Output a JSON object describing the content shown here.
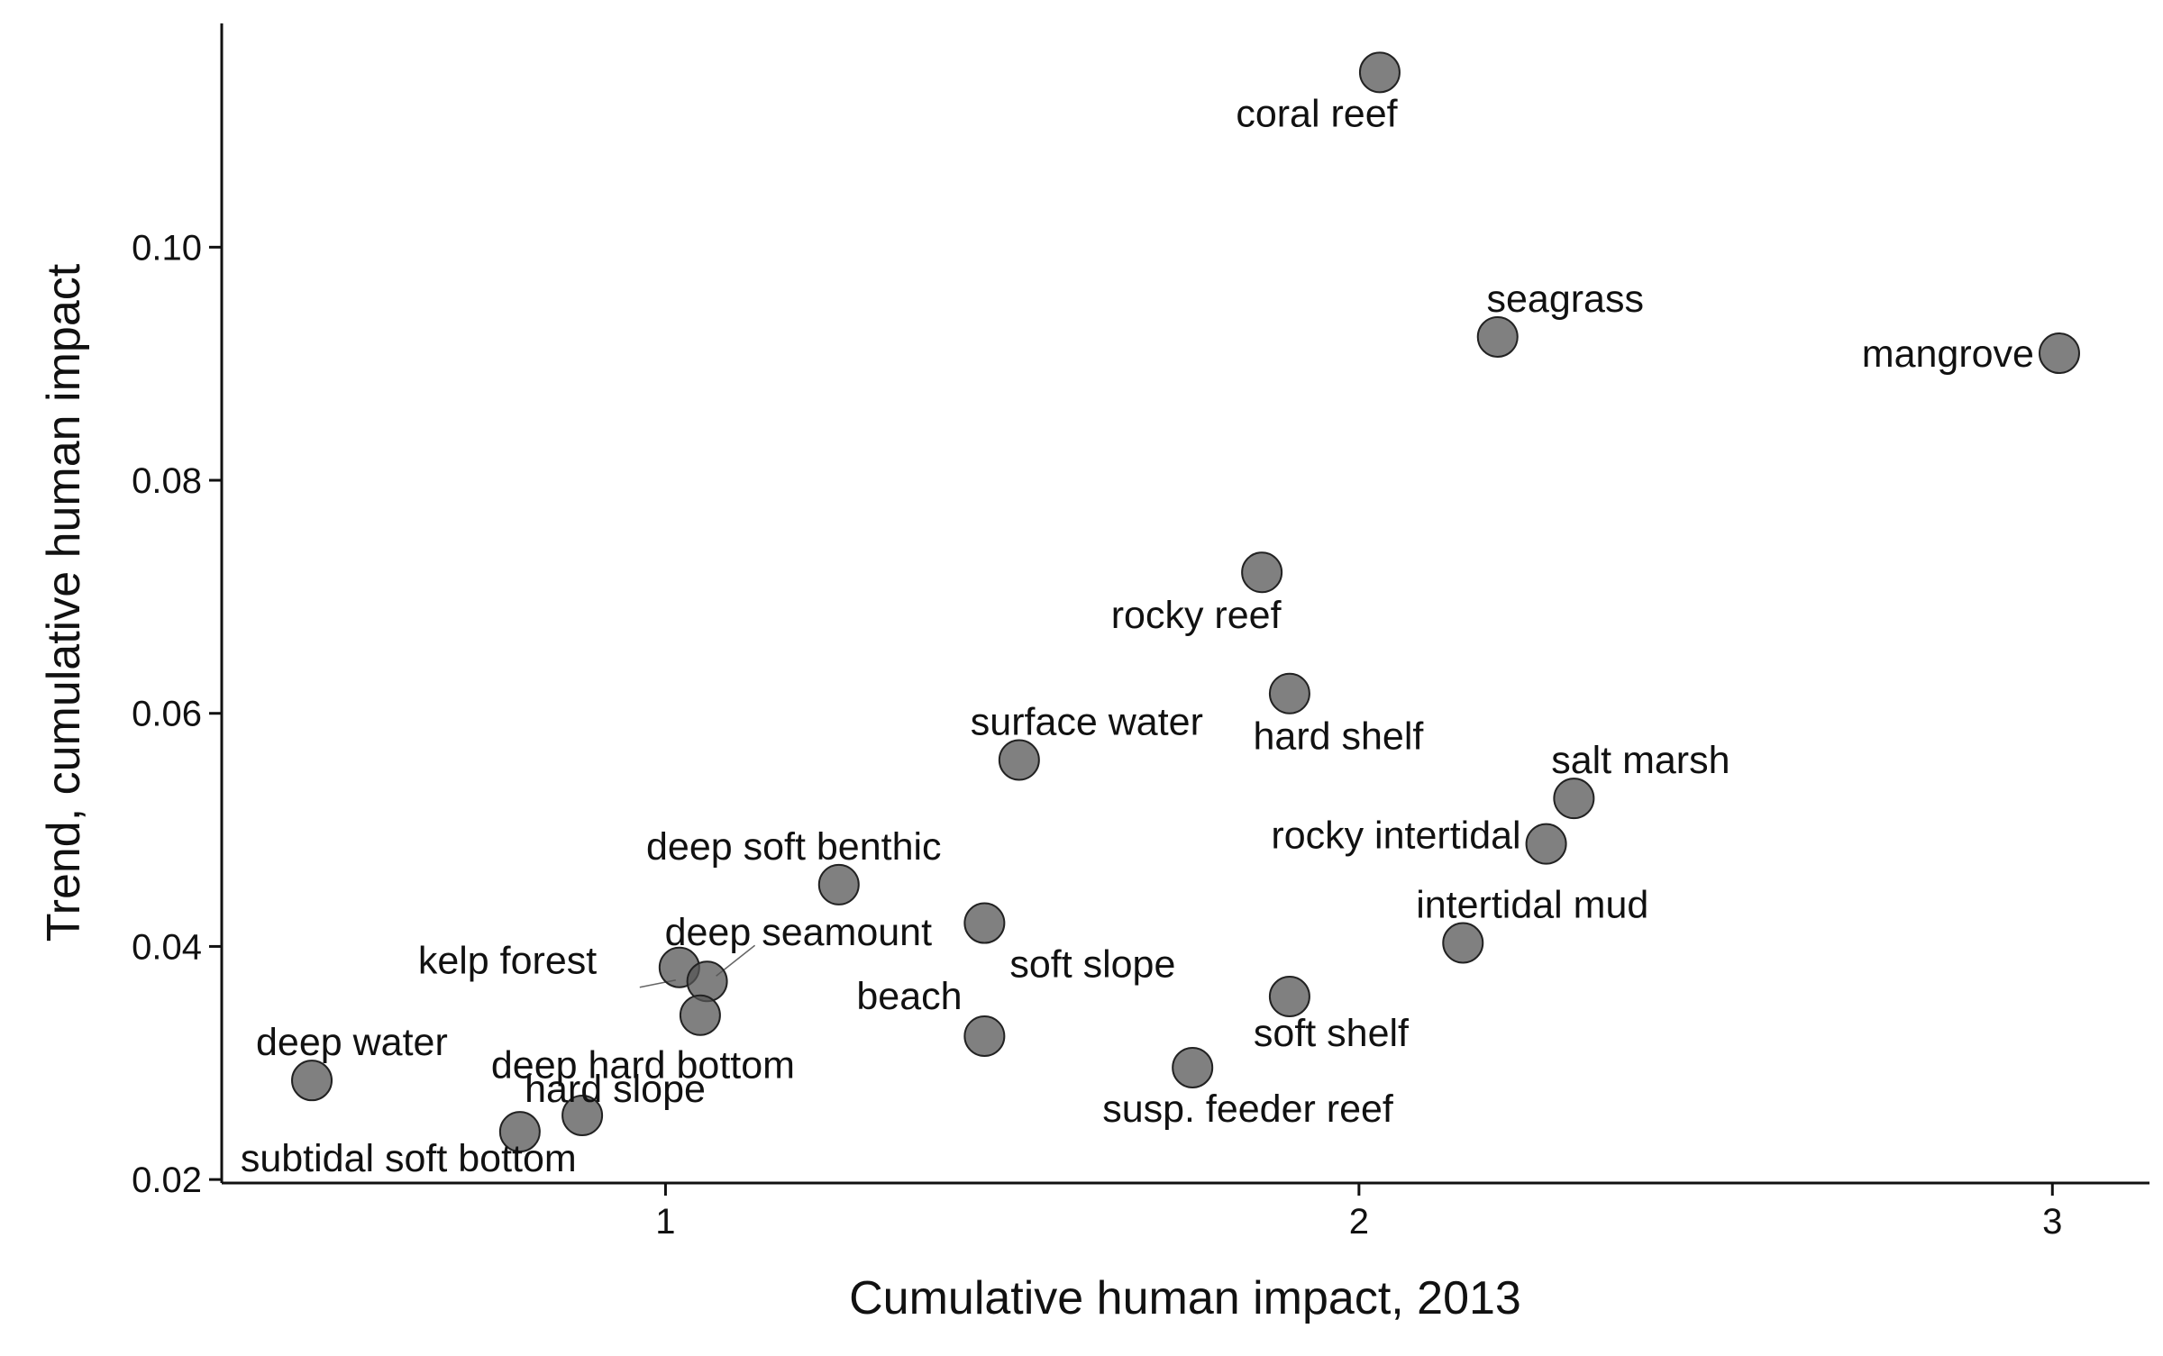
{
  "chart_data": {
    "type": "scatter",
    "title": "",
    "xlabel": "Cumulative human impact, 2013",
    "ylabel": "Trend, cumulative human impact",
    "xlim": [
      0.36,
      3.14
    ],
    "ylim": [
      0.0197,
      0.1192
    ],
    "x_ticks": [
      1,
      2,
      3
    ],
    "x_tick_labels": [
      "1",
      "2",
      "3"
    ],
    "y_ticks": [
      0.02,
      0.04,
      0.06,
      0.08,
      0.1
    ],
    "y_tick_labels": [
      "0.02",
      "0.04",
      "0.06",
      "0.08",
      "0.10"
    ],
    "grid": false,
    "point_color": "#555555",
    "points": [
      {
        "label": "coral reef",
        "x": 2.03,
        "y": 0.115
      },
      {
        "label": "seagrass",
        "x": 2.2,
        "y": 0.0923
      },
      {
        "label": "mangrove",
        "x": 3.01,
        "y": 0.0909
      },
      {
        "label": "rocky reef",
        "x": 1.86,
        "y": 0.0721
      },
      {
        "label": "hard shelf",
        "x": 1.9,
        "y": 0.0617
      },
      {
        "label": "surface water",
        "x": 1.51,
        "y": 0.056
      },
      {
        "label": "salt marsh",
        "x": 2.31,
        "y": 0.0527
      },
      {
        "label": "rocky intertidal",
        "x": 2.27,
        "y": 0.0488
      },
      {
        "label": "deep soft benthic",
        "x": 1.25,
        "y": 0.0453
      },
      {
        "label": "soft slope",
        "x": 1.46,
        "y": 0.042
      },
      {
        "label": "intertidal mud",
        "x": 2.15,
        "y": 0.0403
      },
      {
        "label": "kelp forest",
        "x": 1.02,
        "y": 0.0382
      },
      {
        "label": "deep seamount",
        "x": 1.06,
        "y": 0.037
      },
      {
        "label": "soft shelf",
        "x": 1.9,
        "y": 0.0357
      },
      {
        "label": "deep hard bottom",
        "x": 1.05,
        "y": 0.0341
      },
      {
        "label": "beach",
        "x": 1.46,
        "y": 0.0323
      },
      {
        "label": "susp. feeder reef",
        "x": 1.76,
        "y": 0.0296
      },
      {
        "label": "deep water",
        "x": 0.49,
        "y": 0.0285
      },
      {
        "label": "hard slope",
        "x": 0.88,
        "y": 0.0255
      },
      {
        "label": "subtidal soft bottom",
        "x": 0.79,
        "y": 0.0241
      }
    ]
  }
}
